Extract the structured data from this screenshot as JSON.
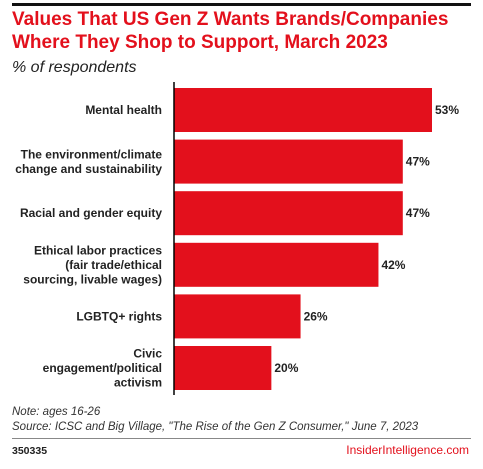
{
  "header": {
    "title": "Values That US Gen Z Wants Brands/Companies Where They Shop to Support, March 2023",
    "subtitle": "% of respondents"
  },
  "footer": {
    "note": "Note: ages 16-26",
    "source": "Source: ICSC and Big Village, \"The Rise of the Gen Z Consumer,\" June 7, 2023",
    "chart_id": "350335",
    "brand": "InsiderIntelligence.com"
  },
  "colors": {
    "bar": "#e3101c",
    "title": "#e3101c",
    "axis": "#000000"
  },
  "chart_data": {
    "type": "bar",
    "orientation": "horizontal",
    "categories": [
      [
        "Mental health"
      ],
      [
        "The environment/climate",
        "change and sustainability"
      ],
      [
        "Racial and gender equity"
      ],
      [
        "Ethical labor practices",
        "(fair trade/ethical",
        "sourcing, livable wages)"
      ],
      [
        "LGBTQ+ rights"
      ],
      [
        "Civic",
        "engagement/political",
        "activism"
      ]
    ],
    "values": [
      53,
      47,
      47,
      42,
      26,
      20
    ],
    "value_labels": [
      "53%",
      "47%",
      "47%",
      "42%",
      "26%",
      "20%"
    ],
    "unit": "%",
    "xlim": [
      0,
      53
    ],
    "grid": false
  }
}
